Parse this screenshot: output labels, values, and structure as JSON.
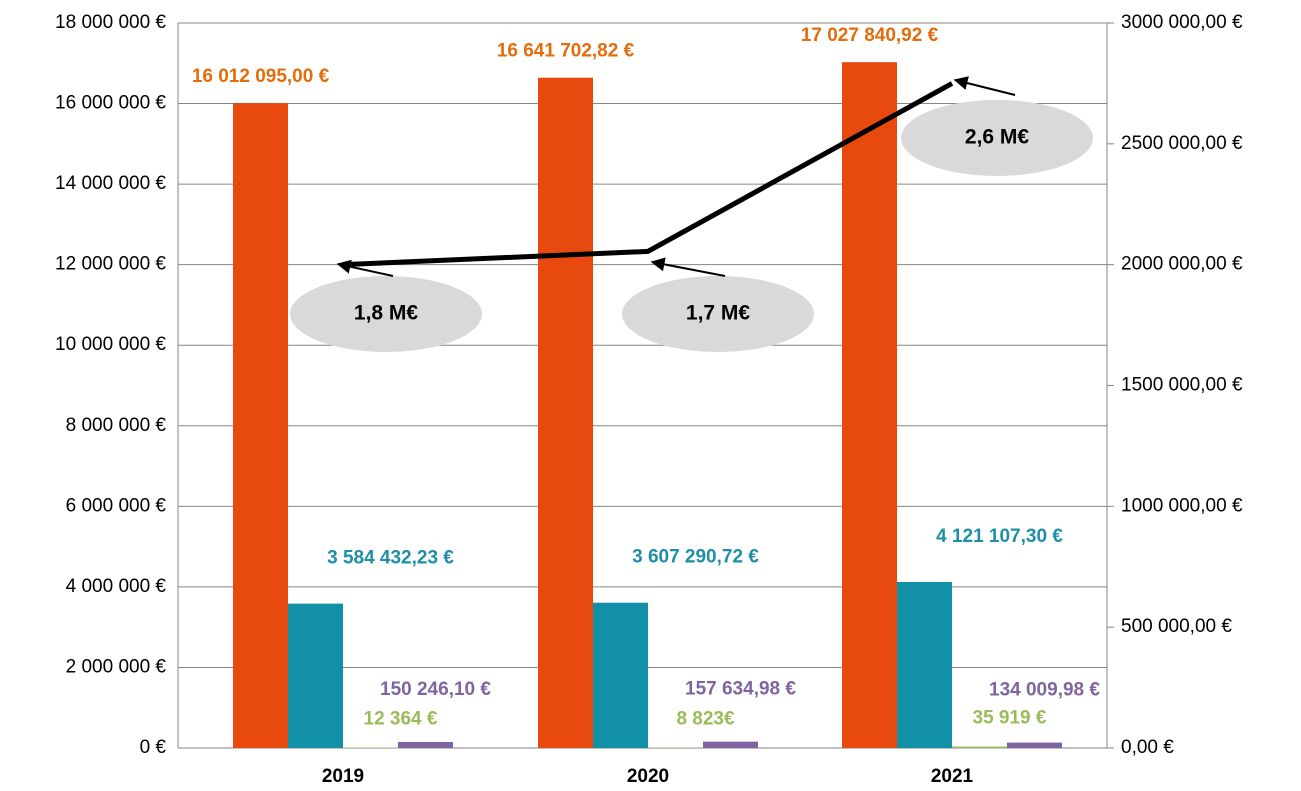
{
  "chart_data": {
    "type": "bar",
    "categories": [
      "2019",
      "2020",
      "2021"
    ],
    "series": [
      {
        "color": "#e8490f",
        "label_color": "#e46c0a",
        "values": [
          16012095,
          16641702.82,
          17027840.92
        ],
        "value_labels": [
          "16 012 095,00 €",
          "16 641 702,82 €",
          "17 027 840,92 €"
        ]
      },
      {
        "color": "#1290a8",
        "label_color": "#1f8fa8",
        "values": [
          3584432.23,
          3607290.72,
          4121107.3
        ],
        "value_labels": [
          "3 584 432,23 €",
          "3 607 290,72 €",
          "4 121 107,30 €"
        ]
      },
      {
        "color": "#9bbb59",
        "label_color": "#9bbb59",
        "values": [
          12364,
          8823,
          35919
        ],
        "value_labels": [
          "12 364 €",
          "8 823€",
          "35 919 €"
        ]
      },
      {
        "color": "#8064a2",
        "label_color": "#8064a2",
        "values": [
          150246.1,
          157634.98,
          134009.98
        ],
        "value_labels": [
          "150 246,10 €",
          "157 634,98 €",
          "134 009,98 €"
        ]
      },
      {
        "type": "line",
        "axis": "y2",
        "color": "#000000",
        "values": [
          2000000,
          2055000,
          2750000
        ]
      }
    ],
    "ylim": [
      0,
      18000000
    ],
    "yticks": [
      {
        "value": 0,
        "label": "0 €"
      },
      {
        "value": 2000000,
        "label": "2 000 000 €"
      },
      {
        "value": 4000000,
        "label": "4 000 000 €"
      },
      {
        "value": 6000000,
        "label": "6 000 000 €"
      },
      {
        "value": 8000000,
        "label": "8 000 000 €"
      },
      {
        "value": 10000000,
        "label": "10 000 000 €"
      },
      {
        "value": 12000000,
        "label": "12 000 000 €"
      },
      {
        "value": 14000000,
        "label": "14 000 000 €"
      },
      {
        "value": 16000000,
        "label": "16 000 000 €"
      },
      {
        "value": 18000000,
        "label": "18 000 000 €"
      }
    ],
    "y2lim": [
      0,
      3000000
    ],
    "y2ticks": [
      {
        "value": 0,
        "label": "0,00 €"
      },
      {
        "value": 500000,
        "label": "500 000,00 €"
      },
      {
        "value": 1000000,
        "label": "1000 000,00 €"
      },
      {
        "value": 1500000,
        "label": "1500 000,00 €"
      },
      {
        "value": 2000000,
        "label": "2000 000,00 €"
      },
      {
        "value": 2500000,
        "label": "2500 000,00 €"
      },
      {
        "value": 3000000,
        "label": "3000 000,00 €"
      }
    ],
    "grid": true,
    "annotations": [
      "1,8 M€",
      "1,7 M€",
      "2,6 M€"
    ]
  }
}
